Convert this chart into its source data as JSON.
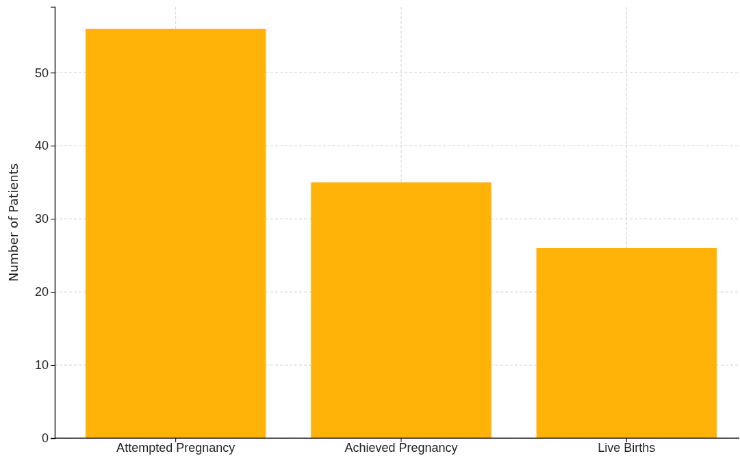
{
  "chart_data": {
    "type": "bar",
    "ylabel": "Number of Patients",
    "categories": [
      "Attempted Pregnancy",
      "Achieved Pregnancy",
      "Live Births"
    ],
    "values": [
      56,
      35,
      26
    ],
    "color": "#ffb000",
    "ylim": [
      0,
      59
    ],
    "yticks": [
      0,
      10,
      20,
      30,
      40,
      50
    ],
    "grid": true
  }
}
